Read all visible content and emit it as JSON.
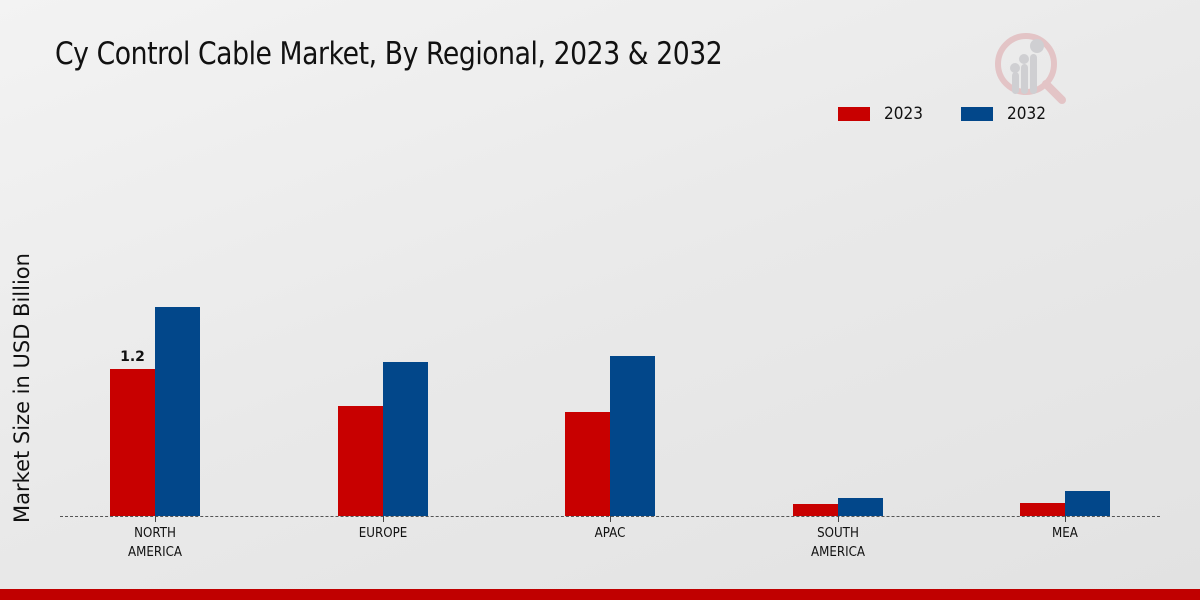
{
  "title": "Cy Control Cable Market, By Regional, 2023 & 2032",
  "legend": {
    "items": [
      {
        "label": "2023",
        "color": "#c80000"
      },
      {
        "label": "2032",
        "color": "#02478a"
      }
    ]
  },
  "logo": {
    "icon": "magnifier-bar-chart-icon"
  },
  "chart_data": {
    "type": "bar",
    "title": "Cy Control Cable Market, By Regional, 2023 & 2032",
    "xlabel": "",
    "ylabel": "Market Size in USD Billion",
    "categories": [
      "NORTH AMERICA",
      "EUROPE",
      "APAC",
      "SOUTH AMERICA",
      "MEA"
    ],
    "category_lines": [
      [
        "NORTH",
        "AMERICA"
      ],
      [
        "EUROPE"
      ],
      [
        "APAC"
      ],
      [
        "SOUTH",
        "AMERICA"
      ],
      [
        "MEA"
      ]
    ],
    "series": [
      {
        "name": "2023",
        "color": "#c80000",
        "values": [
          1.2,
          0.9,
          0.85,
          0.1,
          0.11
        ]
      },
      {
        "name": "2032",
        "color": "#02478a",
        "values": [
          1.71,
          1.26,
          1.31,
          0.15,
          0.2
        ]
      }
    ],
    "annotations": [
      {
        "category": "NORTH AMERICA",
        "series": "2023",
        "text": "1.2"
      }
    ],
    "ylim": [
      0,
      3.2
    ],
    "grid": false,
    "legend_position": "top-right",
    "baseline_style": "dashed"
  },
  "footer": {
    "color": "#c00000"
  }
}
